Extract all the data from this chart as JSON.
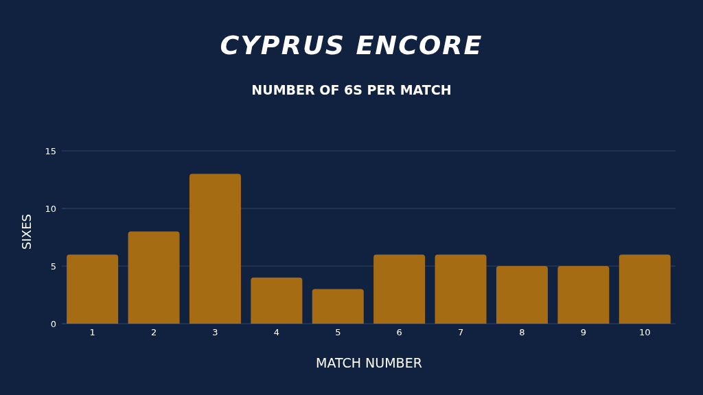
{
  "chart_data": {
    "type": "bar",
    "title": "CYPRUS ENCORE",
    "subtitle": "NUMBER OF 6S PER MATCH",
    "xlabel": "MATCH NUMBER",
    "ylabel": "SIXES",
    "categories": [
      "1",
      "2",
      "3",
      "4",
      "5",
      "6",
      "7",
      "8",
      "9",
      "10"
    ],
    "values": [
      6,
      8,
      13,
      4,
      3,
      6,
      6,
      5,
      5,
      6
    ],
    "color": "#a66c14",
    "ylim": [
      0,
      15
    ],
    "yticks": [
      0,
      5,
      10,
      15
    ],
    "grid": "y"
  }
}
